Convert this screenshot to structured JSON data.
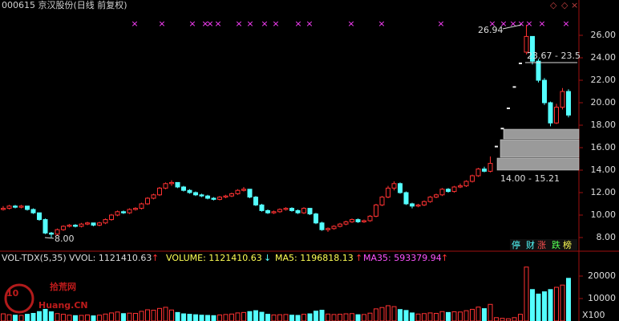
{
  "chart_data": {
    "type": "candlestick",
    "title": "000615 京汉股份(日线 前复权)",
    "window_icons": [
      "◇",
      "◇",
      "×"
    ],
    "signal_marker": "×",
    "ylim": [
      7,
      28
    ],
    "yticks": [
      {
        "value": 8,
        "label": "8.00"
      },
      {
        "value": 10,
        "label": "10.00"
      },
      {
        "value": 12,
        "label": "12.00"
      },
      {
        "value": 14,
        "label": "14.00"
      },
      {
        "value": 16,
        "label": "16.00"
      },
      {
        "value": 18,
        "label": "18.00"
      },
      {
        "value": 20,
        "label": "20.00"
      },
      {
        "value": 22,
        "label": "22.00"
      },
      {
        "value": 24,
        "label": "24.00"
      },
      {
        "value": 26,
        "label": "26.00"
      }
    ],
    "up_color": "#ff3232",
    "down_color": "#54ffff",
    "ohlc": [
      [
        10.5,
        10.8,
        10.4,
        10.6
      ],
      [
        10.6,
        10.9,
        10.5,
        10.8
      ],
      [
        10.8,
        10.9,
        10.6,
        10.7
      ],
      [
        10.7,
        10.9,
        10.6,
        10.8
      ],
      [
        10.8,
        10.8,
        10.4,
        10.5
      ],
      [
        10.5,
        10.6,
        10.1,
        10.2
      ],
      [
        10.2,
        10.2,
        9.5,
        9.6
      ],
      [
        9.6,
        9.7,
        8.3,
        8.4
      ],
      [
        8.4,
        8.5,
        8.0,
        8.3
      ],
      [
        8.3,
        8.8,
        8.2,
        8.7
      ],
      [
        8.7,
        9.1,
        8.6,
        9.0
      ],
      [
        9.0,
        9.2,
        8.9,
        9.1
      ],
      [
        9.1,
        9.2,
        8.9,
        9.0
      ],
      [
        9.0,
        9.3,
        8.9,
        9.2
      ],
      [
        9.2,
        9.4,
        9.1,
        9.3
      ],
      [
        9.3,
        9.3,
        9.0,
        9.1
      ],
      [
        9.1,
        9.4,
        9.0,
        9.3
      ],
      [
        9.3,
        9.7,
        9.2,
        9.6
      ],
      [
        9.6,
        10.1,
        9.5,
        10.0
      ],
      [
        10.0,
        10.4,
        9.9,
        10.3
      ],
      [
        10.3,
        10.4,
        10.1,
        10.2
      ],
      [
        10.2,
        10.6,
        10.1,
        10.5
      ],
      [
        10.5,
        10.7,
        10.4,
        10.6
      ],
      [
        10.6,
        11.1,
        10.5,
        11.0
      ],
      [
        11.0,
        11.6,
        10.9,
        11.5
      ],
      [
        11.5,
        11.9,
        11.4,
        11.8
      ],
      [
        11.8,
        12.5,
        11.7,
        12.4
      ],
      [
        12.4,
        12.9,
        12.3,
        12.8
      ],
      [
        12.8,
        13.1,
        12.6,
        12.9
      ],
      [
        12.9,
        12.9,
        12.4,
        12.5
      ],
      [
        12.5,
        12.6,
        12.1,
        12.2
      ],
      [
        12.2,
        12.3,
        11.9,
        12.0
      ],
      [
        12.0,
        12.1,
        11.7,
        11.8
      ],
      [
        11.8,
        11.9,
        11.6,
        11.7
      ],
      [
        11.7,
        11.8,
        11.4,
        11.5
      ],
      [
        11.5,
        11.6,
        11.3,
        11.4
      ],
      [
        11.4,
        11.7,
        11.3,
        11.6
      ],
      [
        11.6,
        11.8,
        11.5,
        11.7
      ],
      [
        11.7,
        12.0,
        11.6,
        11.9
      ],
      [
        11.9,
        12.3,
        11.8,
        12.2
      ],
      [
        12.2,
        12.5,
        12.1,
        12.3
      ],
      [
        12.3,
        12.3,
        11.5,
        11.6
      ],
      [
        11.6,
        11.7,
        10.8,
        10.9
      ],
      [
        10.9,
        11.0,
        10.3,
        10.4
      ],
      [
        10.4,
        10.5,
        10.1,
        10.2
      ],
      [
        10.2,
        10.4,
        10.1,
        10.3
      ],
      [
        10.3,
        10.6,
        10.2,
        10.5
      ],
      [
        10.5,
        10.7,
        10.4,
        10.6
      ],
      [
        10.6,
        10.7,
        10.3,
        10.4
      ],
      [
        10.4,
        10.5,
        10.1,
        10.2
      ],
      [
        10.2,
        10.7,
        10.1,
        10.6
      ],
      [
        10.6,
        10.6,
        10.0,
        10.1
      ],
      [
        10.1,
        10.2,
        9.2,
        9.3
      ],
      [
        9.3,
        9.4,
        8.6,
        8.7
      ],
      [
        8.7,
        8.9,
        8.5,
        8.8
      ],
      [
        8.8,
        9.1,
        8.7,
        9.0
      ],
      [
        9.0,
        9.3,
        8.9,
        9.2
      ],
      [
        9.2,
        9.5,
        9.1,
        9.4
      ],
      [
        9.4,
        9.7,
        9.3,
        9.6
      ],
      [
        9.6,
        9.7,
        9.3,
        9.4
      ],
      [
        9.4,
        9.6,
        9.3,
        9.5
      ],
      [
        9.5,
        10.0,
        9.4,
        9.9
      ],
      [
        9.9,
        11.0,
        9.8,
        10.9
      ],
      [
        10.9,
        11.7,
        10.8,
        11.6
      ],
      [
        11.6,
        12.6,
        11.5,
        12.4
      ],
      [
        12.4,
        13.0,
        12.2,
        12.8
      ],
      [
        12.8,
        12.9,
        11.9,
        12.0
      ],
      [
        12.0,
        12.1,
        10.9,
        11.0
      ],
      [
        11.0,
        11.1,
        10.6,
        10.8
      ],
      [
        10.8,
        11.0,
        10.7,
        10.9
      ],
      [
        10.9,
        11.3,
        10.8,
        11.2
      ],
      [
        11.2,
        11.7,
        11.1,
        11.6
      ],
      [
        11.6,
        11.9,
        11.5,
        11.8
      ],
      [
        11.8,
        12.4,
        11.7,
        12.3
      ],
      [
        12.3,
        12.4,
        12.0,
        12.1
      ],
      [
        12.1,
        12.6,
        12.0,
        12.5
      ],
      [
        12.5,
        12.8,
        12.4,
        12.6
      ],
      [
        12.6,
        13.1,
        12.5,
        13.0
      ],
      [
        13.0,
        13.6,
        12.9,
        13.5
      ],
      [
        13.5,
        14.2,
        13.4,
        14.1
      ],
      [
        14.1,
        14.3,
        13.8,
        13.9
      ],
      [
        13.9,
        15.21,
        13.8,
        14.6
      ],
      [
        16.1,
        16.1,
        16.1,
        16.1
      ],
      [
        17.7,
        17.7,
        17.7,
        17.7
      ],
      [
        19.5,
        19.5,
        19.5,
        19.5
      ],
      [
        21.4,
        21.4,
        21.4,
        21.4
      ],
      [
        23.5,
        23.5,
        23.5,
        23.5
      ],
      [
        24.5,
        26.94,
        24.3,
        25.9
      ],
      [
        25.9,
        25.9,
        23.4,
        23.7
      ],
      [
        23.7,
        23.9,
        21.8,
        22.0
      ],
      [
        22.0,
        22.2,
        19.8,
        20.0
      ],
      [
        20.0,
        20.1,
        17.9,
        18.2
      ],
      [
        18.2,
        19.9,
        18.1,
        19.6
      ],
      [
        19.6,
        21.3,
        19.4,
        21.0
      ],
      [
        21.0,
        21.2,
        18.7,
        18.9
      ]
    ],
    "annotations": {
      "high": "26.94",
      "low": "8.00",
      "range_top": "23.67 - 23.5",
      "range_bottom": "14.00 - 15.21"
    },
    "buttons": [
      "停",
      "财",
      "涨",
      "跌",
      "榜"
    ],
    "indicator": {
      "name": "VOL-TDX(5,35)",
      "vvol": "VVOL: 1121410.63",
      "volume": "VOLUME: 1121410.63",
      "ma5": "MA5: 1196818.13",
      "ma35": "MA35: 593379.94",
      "up": "↑",
      "down": "↓"
    },
    "volume_ylim": [
      0,
      30000
    ],
    "volume_yticks": [
      10000,
      20000
    ],
    "volume_unit": "X100",
    "volume": [
      3200,
      2800,
      2600,
      2500,
      3000,
      3400,
      4200,
      5200,
      4100,
      3300,
      3000,
      2600,
      2400,
      2500,
      2700,
      2300,
      2600,
      3100,
      3600,
      4000,
      3300,
      3500,
      3400,
      4300,
      5000,
      4800,
      5600,
      6100,
      4900,
      3800,
      3200,
      3000,
      2800,
      2600,
      2500,
      2400,
      2700,
      2900,
      3100,
      3600,
      3800,
      4200,
      4600,
      3900,
      3000,
      2700,
      2800,
      2900,
      2600,
      2500,
      3000,
      3200,
      4400,
      4800,
      3100,
      2900,
      3000,
      3200,
      3300,
      2800,
      2900,
      3500,
      5400,
      6000,
      6800,
      6400,
      5100,
      4700,
      3600,
      3100,
      3300,
      3600,
      3400,
      4200,
      3800,
      4100,
      4000,
      4600,
      5200,
      6200,
      5500,
      7400,
      1500,
      1200,
      1000,
      1500,
      3000,
      24000,
      14000,
      12000,
      13000,
      14000,
      15000,
      16000,
      19000
    ],
    "watermark": [
      "10",
      "拾荒网",
      "Huang.CN"
    ]
  }
}
